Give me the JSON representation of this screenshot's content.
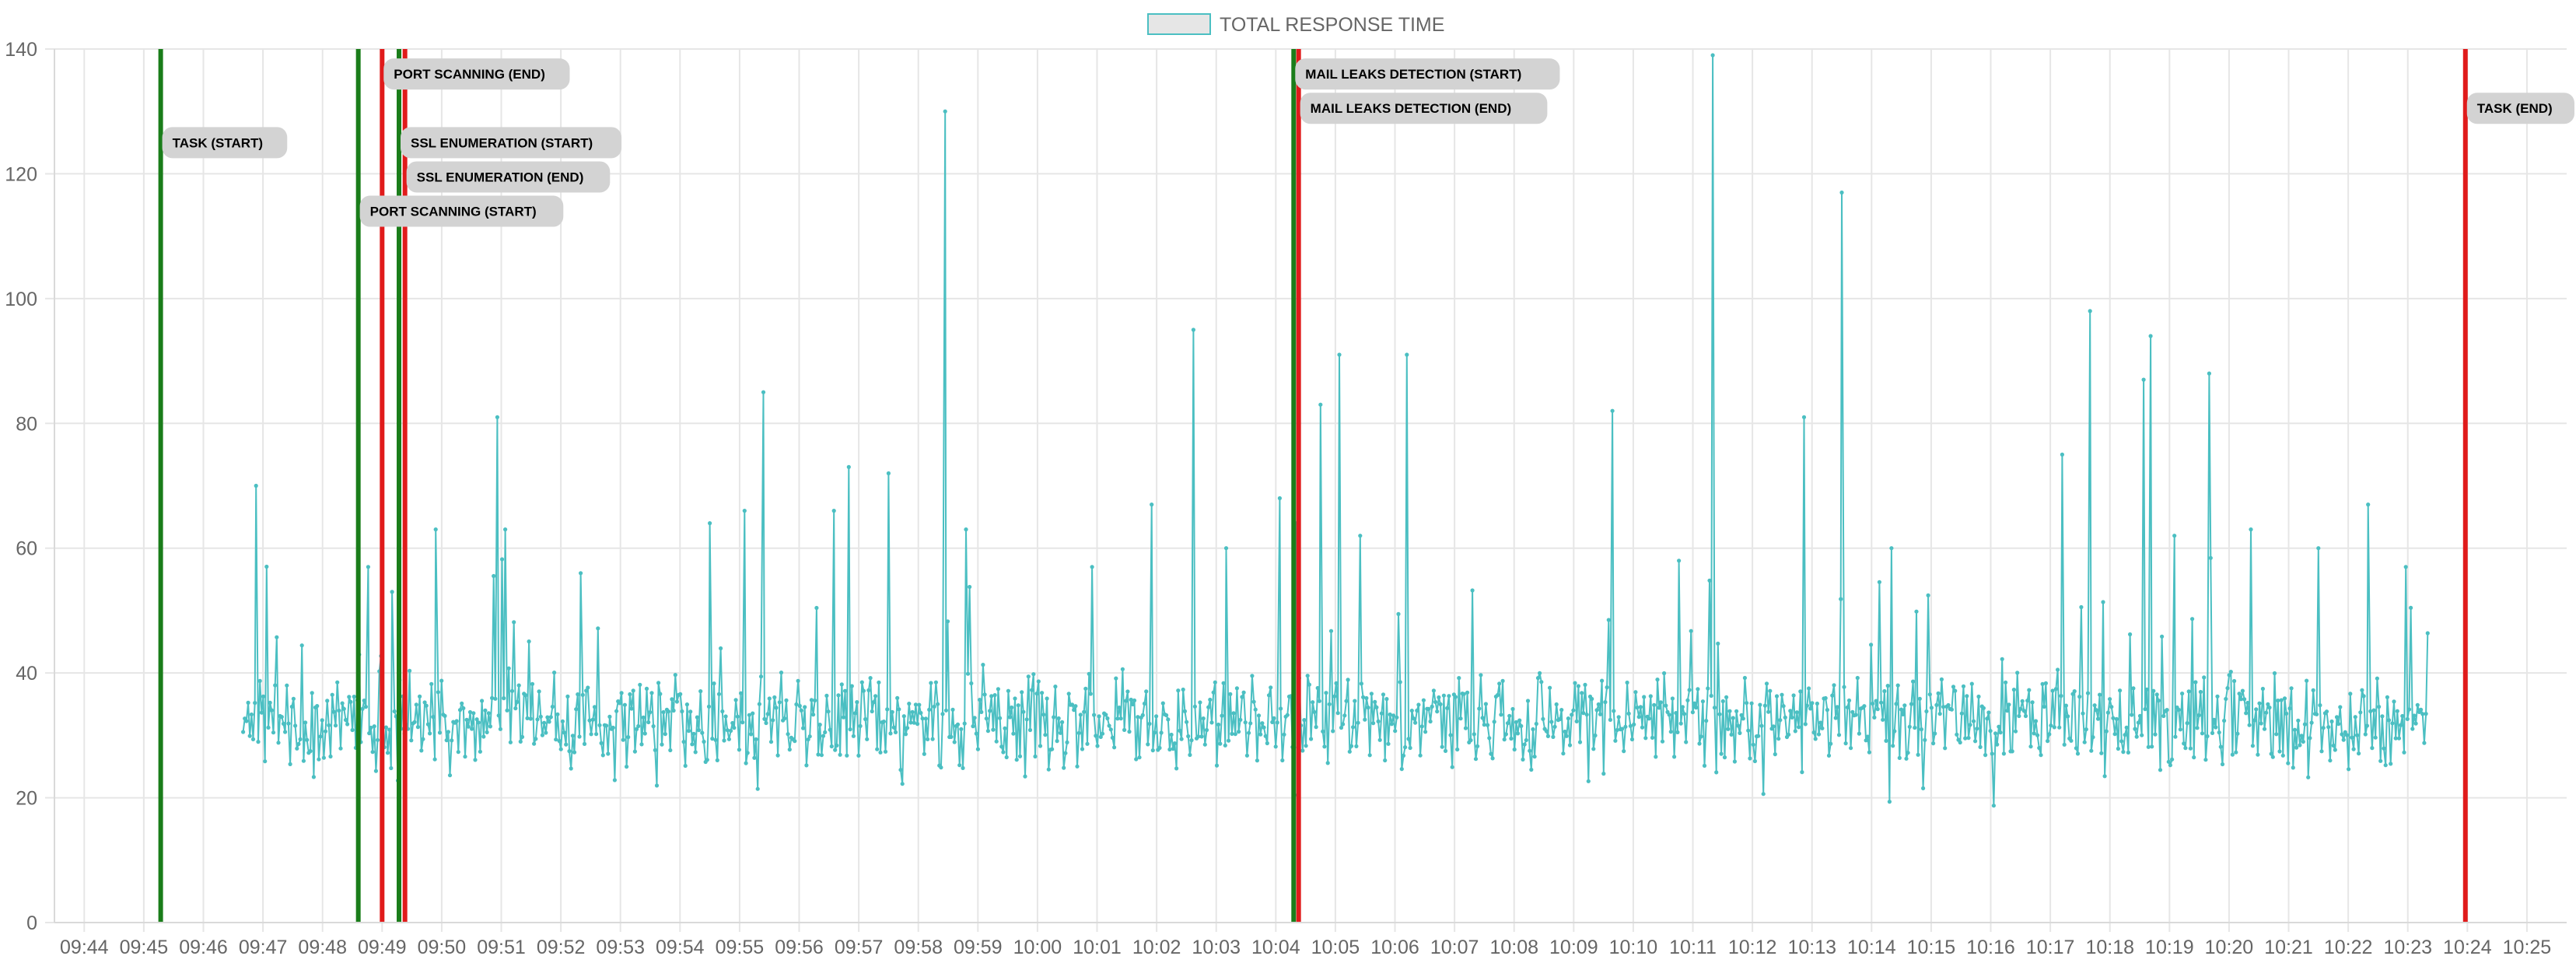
{
  "chart_data": {
    "type": "line",
    "legend": {
      "position": "top-center",
      "label": "TOTAL RESPONSE TIME"
    },
    "colors": {
      "series": "#4bbfc2",
      "series_fill": "#e6e6e6",
      "start_marker": "#1a7d1a",
      "end_marker": "#e01b1b",
      "label_bg": "#d3d3d3",
      "grid": "#e6e6e6",
      "tick_text": "#666666"
    },
    "ylim": [
      0,
      140
    ],
    "yticks": [
      0,
      20,
      40,
      60,
      80,
      100,
      120,
      140
    ],
    "grid": true,
    "xlim": [
      "09:43:30",
      "10:25:40"
    ],
    "xtick_labels": [
      "09:44",
      "09:45",
      "09:46",
      "09:47",
      "09:48",
      "09:49",
      "09:50",
      "09:51",
      "09:52",
      "09:53",
      "09:54",
      "09:55",
      "09:56",
      "09:57",
      "09:58",
      "09:59",
      "10:00",
      "10:01",
      "10:02",
      "10:03",
      "10:04",
      "10:05",
      "10:06",
      "10:07",
      "10:08",
      "10:09",
      "10:10",
      "10:11",
      "10:12",
      "10:13",
      "10:14",
      "10:15",
      "10:16",
      "10:17",
      "10:18",
      "10:19",
      "10:20",
      "10:21",
      "10:22",
      "10:23",
      "10:24",
      "10:25"
    ],
    "event_markers": [
      {
        "label": "TASK (START)",
        "time": "09:45:17",
        "kind": "start",
        "label_y": 125
      },
      {
        "label": "PORT SCANNING (START)",
        "time": "09:48:36",
        "kind": "start",
        "label_y": 114
      },
      {
        "label": "PORT SCANNING (END)",
        "time": "09:49:00",
        "kind": "end",
        "label_y": 136
      },
      {
        "label": "SSL ENUMERATION (START)",
        "time": "09:49:17",
        "kind": "start",
        "label_y": 125
      },
      {
        "label": "SSL ENUMERATION (END)",
        "time": "09:49:23",
        "kind": "end",
        "label_y": 119.5
      },
      {
        "label": "MAIL LEAKS DETECTION (START)",
        "time": "10:04:18",
        "kind": "start",
        "label_y": 136
      },
      {
        "label": "MAIL LEAKS DETECTION (END)",
        "time": "10:04:23",
        "kind": "end",
        "label_y": 130.5
      },
      {
        "label": "TASK (END)",
        "time": "10:23:58",
        "kind": "end",
        "label_y": 130.5
      }
    ],
    "series": [
      {
        "name": "TOTAL RESPONSE TIME",
        "x_start": "09:46:40",
        "x_end": "10:23:20",
        "point_count": 1300,
        "typical_range": [
          20,
          45
        ],
        "spikes": [
          {
            "time": "09:46:53",
            "value": 70
          },
          {
            "time": "09:48:46",
            "value": 57
          },
          {
            "time": "09:49:10",
            "value": 53
          },
          {
            "time": "09:49:54",
            "value": 63
          },
          {
            "time": "09:50:56",
            "value": 81
          },
          {
            "time": "09:51:04",
            "value": 63
          },
          {
            "time": "09:52:20",
            "value": 56
          },
          {
            "time": "09:54:30",
            "value": 64
          },
          {
            "time": "09:55:05",
            "value": 66
          },
          {
            "time": "09:55:24",
            "value": 85
          },
          {
            "time": "09:56:35",
            "value": 66
          },
          {
            "time": "09:56:50",
            "value": 73
          },
          {
            "time": "09:57:30",
            "value": 72
          },
          {
            "time": "09:58:27",
            "value": 130
          },
          {
            "time": "09:58:48",
            "value": 63
          },
          {
            "time": "10:00:55",
            "value": 57
          },
          {
            "time": "10:01:55",
            "value": 67
          },
          {
            "time": "10:02:37",
            "value": 95
          },
          {
            "time": "10:03:10",
            "value": 60
          },
          {
            "time": "10:04:04",
            "value": 68
          },
          {
            "time": "10:04:21",
            "value": 64
          },
          {
            "time": "10:04:45",
            "value": 83
          },
          {
            "time": "10:05:04",
            "value": 91
          },
          {
            "time": "10:05:25",
            "value": 62
          },
          {
            "time": "10:06:12",
            "value": 91
          },
          {
            "time": "10:09:39",
            "value": 82
          },
          {
            "time": "10:10:46",
            "value": 58
          },
          {
            "time": "10:11:20",
            "value": 139
          },
          {
            "time": "10:12:52",
            "value": 81
          },
          {
            "time": "10:13:30",
            "value": 117
          },
          {
            "time": "10:14:20",
            "value": 60
          },
          {
            "time": "10:17:12",
            "value": 75
          },
          {
            "time": "10:17:40",
            "value": 98
          },
          {
            "time": "10:18:34",
            "value": 87
          },
          {
            "time": "10:18:41",
            "value": 94
          },
          {
            "time": "10:19:05",
            "value": 62
          },
          {
            "time": "10:19:40",
            "value": 88
          },
          {
            "time": "10:20:22",
            "value": 63
          },
          {
            "time": "10:21:30",
            "value": 60
          },
          {
            "time": "10:22:20",
            "value": 67
          },
          {
            "time": "10:22:58",
            "value": 57
          }
        ]
      }
    ]
  }
}
